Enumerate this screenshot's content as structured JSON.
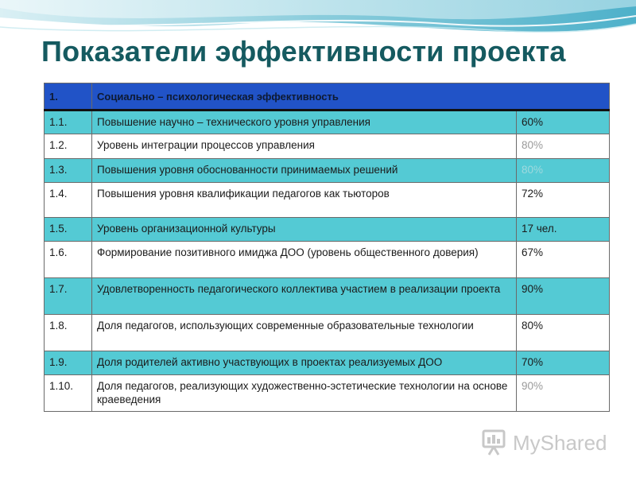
{
  "slide": {
    "title": "Показатели эффективности проекта"
  },
  "table": {
    "header": {
      "num": "1.",
      "text": "Социально – психологическая эффективность"
    },
    "rows": [
      {
        "num": "1.1.",
        "text": "Повышение научно – технического уровня управления",
        "value": "60%"
      },
      {
        "num": "1.2.",
        "text": "Уровень интеграции процессов управления",
        "value": "80%"
      },
      {
        "num": "1.3.",
        "text": "Повышения уровня обоснованности принимаемых решений",
        "value": "80%"
      },
      {
        "num": "1.4.",
        "text": "Повышения уровня квалификации педагогов как тьюторов",
        "value": "72%"
      },
      {
        "num": "1.5.",
        "text": "Уровень организационной культуры",
        "value": "17 чел."
      },
      {
        "num": "1.6.",
        "text": "Формирование позитивного имиджа ДОО (уровень общественного доверия)",
        "value": "67%"
      },
      {
        "num": "1.7.",
        "text": "Удовлетворенность педагогического коллектива участием в реализации проекта",
        "value": "90%"
      },
      {
        "num": "1.8.",
        "text": "Доля педагогов, использующих современные образовательные технологии",
        "value": "80%"
      },
      {
        "num": "1.9.",
        "text": "Доля родителей активно участвующих в проектах реализуемых ДОО",
        "value": "70%"
      },
      {
        "num": "1.10.",
        "text": "Доля педагогов, реализующих художественно-эстетические технологии на основе краеведения",
        "value": "90%"
      }
    ]
  },
  "watermark": {
    "text": "MyShared"
  },
  "colors": {
    "header_bg": "#2153c7",
    "teal_row": "#54cad4",
    "title": "#155a60"
  },
  "icons": [
    "wave-decoration",
    "myshared-logo-icon"
  ]
}
